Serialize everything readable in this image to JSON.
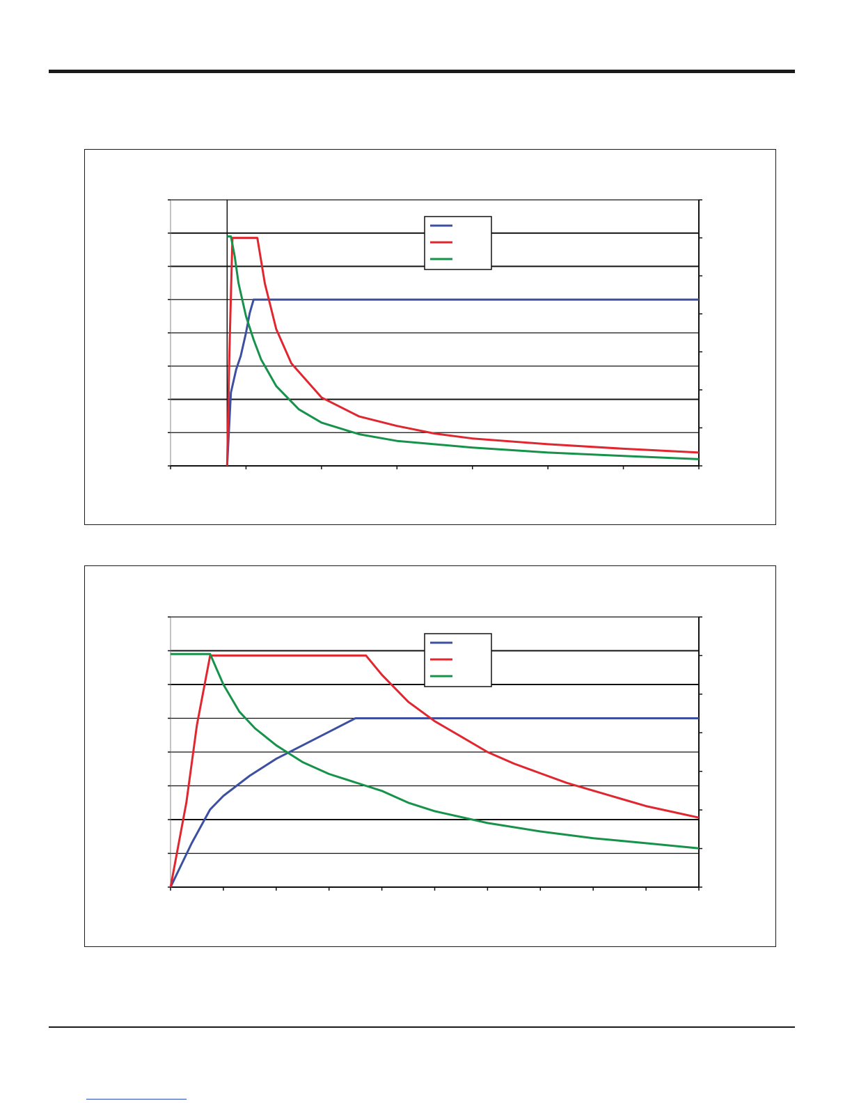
{
  "chart_data": [
    {
      "type": "line",
      "grid": true,
      "legend": "top-center",
      "xlim": [
        0,
        7
      ],
      "ylim_left": [
        0,
        8
      ],
      "ylim_right": [
        0,
        7
      ],
      "x_ticks_count": 7,
      "right_ticks_count": 7,
      "vertical_marker_x": 0.75,
      "series": [
        {
          "color": "#3c4fa0",
          "axis": "left",
          "points": [
            [
              0.75,
              0
            ],
            [
              0.8,
              2.2
            ],
            [
              0.87,
              2.9
            ],
            [
              0.93,
              3.3
            ],
            [
              1.0,
              4
            ],
            [
              1.05,
              4.6
            ],
            [
              1.1,
              5
            ],
            [
              1.15,
              5
            ],
            [
              7,
              5
            ]
          ]
        },
        {
          "color": "#e0262e",
          "axis": "right",
          "points": [
            [
              0.75,
              0
            ],
            [
              0.78,
              3
            ],
            [
              0.82,
              6.0
            ],
            [
              0.85,
              6.0
            ],
            [
              1.15,
              6.0
            ],
            [
              1.25,
              4.8
            ],
            [
              1.4,
              3.6
            ],
            [
              1.6,
              2.7
            ],
            [
              2.0,
              1.8
            ],
            [
              2.5,
              1.3
            ],
            [
              3.0,
              1.05
            ],
            [
              3.5,
              0.85
            ],
            [
              4.0,
              0.72
            ],
            [
              5.0,
              0.57
            ],
            [
              6.0,
              0.45
            ],
            [
              7.0,
              0.35
            ]
          ]
        },
        {
          "color": "#16924a",
          "axis": "left",
          "points": [
            [
              0.75,
              6.9
            ],
            [
              0.8,
              6.9
            ],
            [
              0.85,
              6.3
            ],
            [
              0.9,
              5.5
            ],
            [
              1.0,
              4.5
            ],
            [
              1.1,
              3.8
            ],
            [
              1.2,
              3.2
            ],
            [
              1.4,
              2.4
            ],
            [
              1.7,
              1.7
            ],
            [
              2.0,
              1.3
            ],
            [
              2.5,
              0.95
            ],
            [
              3.0,
              0.75
            ],
            [
              4.0,
              0.55
            ],
            [
              5.0,
              0.4
            ],
            [
              6.0,
              0.3
            ],
            [
              7.0,
              0.2
            ]
          ]
        }
      ]
    },
    {
      "type": "line",
      "grid": true,
      "legend": "top-center",
      "xlim": [
        0,
        10
      ],
      "ylim_left": [
        0,
        8
      ],
      "ylim_right": [
        0,
        7
      ],
      "x_ticks_count": 10,
      "right_ticks_count": 7,
      "series": [
        {
          "color": "#3c4fa0",
          "axis": "left",
          "points": [
            [
              0,
              0
            ],
            [
              0.4,
              1.3
            ],
            [
              0.75,
              2.3
            ],
            [
              1.0,
              2.7
            ],
            [
              1.5,
              3.3
            ],
            [
              2.0,
              3.8
            ],
            [
              2.5,
              4.2
            ],
            [
              3.0,
              4.6
            ],
            [
              3.5,
              5.0
            ],
            [
              3.75,
              5.0
            ],
            [
              10,
              5
            ]
          ]
        },
        {
          "color": "#e0262e",
          "axis": "right",
          "points": [
            [
              0,
              0
            ],
            [
              0.3,
              2.2
            ],
            [
              0.5,
              4.2
            ],
            [
              0.75,
              6.0
            ],
            [
              3.7,
              6.0
            ],
            [
              4.0,
              5.5
            ],
            [
              4.5,
              4.8
            ],
            [
              5.0,
              4.3
            ],
            [
              5.5,
              3.9
            ],
            [
              6.0,
              3.5
            ],
            [
              6.5,
              3.2
            ],
            [
              7.0,
              2.95
            ],
            [
              7.5,
              2.7
            ],
            [
              8.0,
              2.5
            ],
            [
              8.5,
              2.3
            ],
            [
              9.0,
              2.1
            ],
            [
              9.5,
              1.95
            ],
            [
              10.0,
              1.8
            ]
          ]
        },
        {
          "color": "#16924a",
          "axis": "left",
          "points": [
            [
              0,
              6.9
            ],
            [
              0.75,
              6.9
            ],
            [
              1.0,
              6.0
            ],
            [
              1.3,
              5.2
            ],
            [
              1.6,
              4.7
            ],
            [
              2.0,
              4.2
            ],
            [
              2.5,
              3.7
            ],
            [
              3.0,
              3.35
            ],
            [
              3.7,
              3.0
            ],
            [
              4.0,
              2.85
            ],
            [
              4.5,
              2.5
            ],
            [
              5.0,
              2.25
            ],
            [
              6.0,
              1.9
            ],
            [
              7.0,
              1.65
            ],
            [
              8.0,
              1.45
            ],
            [
              9.0,
              1.3
            ],
            [
              10.0,
              1.15
            ]
          ]
        }
      ]
    }
  ]
}
